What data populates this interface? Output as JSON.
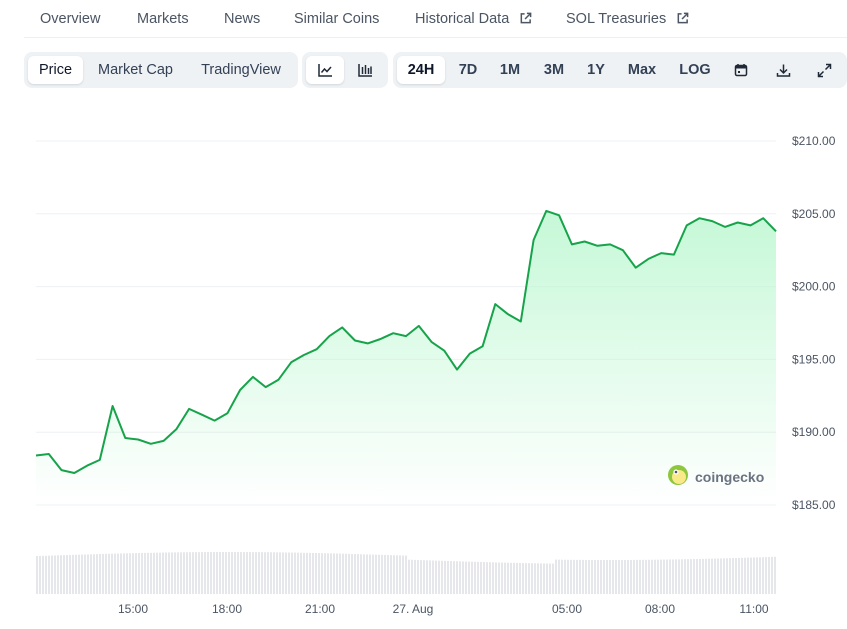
{
  "tabs": [
    {
      "label": "Overview",
      "active": true,
      "external": false
    },
    {
      "label": "Markets",
      "active": false,
      "external": false
    },
    {
      "label": "News",
      "active": false,
      "external": false
    },
    {
      "label": "Similar Coins",
      "active": false,
      "external": false
    },
    {
      "label": "Historical Data",
      "active": false,
      "external": true
    },
    {
      "label": "SOL Treasuries",
      "active": false,
      "external": true
    }
  ],
  "toolbar": {
    "metric_buttons": [
      {
        "label": "Price",
        "selected": true
      },
      {
        "label": "Market Cap",
        "selected": false
      },
      {
        "label": "TradingView",
        "selected": false
      }
    ],
    "chart_type_buttons": [
      {
        "icon": "line-chart-icon",
        "selected": true
      },
      {
        "icon": "candlestick-chart-icon",
        "selected": false
      }
    ],
    "range_buttons": [
      {
        "label": "24H",
        "selected": true
      },
      {
        "label": "7D",
        "selected": false
      },
      {
        "label": "1M",
        "selected": false
      },
      {
        "label": "3M",
        "selected": false
      },
      {
        "label": "1Y",
        "selected": false
      },
      {
        "label": "Max",
        "selected": false
      },
      {
        "label": "LOG",
        "selected": false
      }
    ],
    "tool_icons": [
      "calendar-icon",
      "download-icon",
      "fullscreen-icon"
    ]
  },
  "watermark": {
    "text": "coingecko"
  },
  "colors": {
    "line": "#16a34a",
    "area_top": "#bbf7d0",
    "accent": "#16a34a",
    "grid": "#eef0f3",
    "volume": "#e5e7eb"
  },
  "chart_data": {
    "type": "area",
    "title": "",
    "xlabel": "",
    "ylabel": "",
    "x_ticks": [
      "15:00",
      "18:00",
      "21:00",
      "27. Aug",
      "05:00",
      "08:00",
      "11:00"
    ],
    "y_ticks": [
      "$185.00",
      "$190.00",
      "$195.00",
      "$200.00",
      "$205.00",
      "$210.00"
    ],
    "ylim": [
      185,
      210
    ],
    "grid": true,
    "series": [
      {
        "values": [
          188.4,
          188.5,
          187.4,
          187.2,
          187.7,
          188.1,
          191.8,
          189.6,
          189.5,
          189.2,
          189.4,
          190.2,
          191.6,
          191.2,
          190.8,
          191.3,
          192.9,
          193.8,
          193.1,
          193.6,
          194.8,
          195.3,
          195.7,
          196.6,
          197.2,
          196.3,
          196.1,
          196.4,
          196.8,
          196.6,
          197.3,
          196.2,
          195.6,
          194.3,
          195.4,
          195.9,
          198.8,
          198.1,
          197.6,
          203.2,
          205.2,
          204.9,
          202.9,
          203.1,
          202.8,
          202.9,
          202.5,
          201.3,
          201.9,
          202.3,
          202.2,
          204.2,
          204.7,
          204.5,
          204.1,
          204.4,
          204.2,
          204.7,
          203.8
        ]
      }
    ]
  }
}
